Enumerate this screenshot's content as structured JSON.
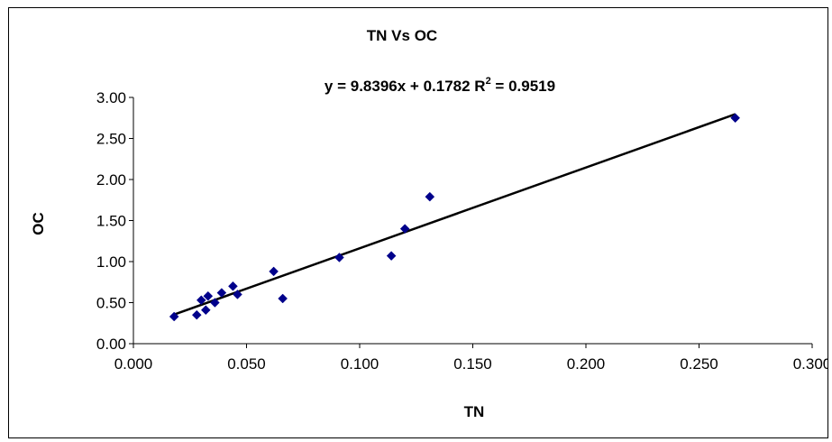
{
  "chart_data": {
    "type": "scatter",
    "title": "TN Vs OC",
    "xlabel": "TN",
    "ylabel": "OC",
    "xlim": [
      0.0,
      0.3
    ],
    "ylim": [
      0.0,
      3.0
    ],
    "x_ticks": [
      "0.000",
      "0.050",
      "0.100",
      "0.150",
      "0.200",
      "0.250",
      "0.300"
    ],
    "y_ticks": [
      "0.00",
      "0.50",
      "1.00",
      "1.50",
      "2.00",
      "2.50",
      "3.00"
    ],
    "grid": false,
    "legend": "none",
    "marker_color": "#00008B",
    "trendline": {
      "type": "linear",
      "slope": 9.8396,
      "intercept": 0.1782,
      "r_squared": 0.9519,
      "equation_prefix": "y = 9.8396x + 0.1782  R",
      "equation_sup": "2",
      "equation_suffix": " = 0.9519",
      "color": "#000000"
    },
    "series": [
      {
        "points": [
          [
            0.018,
            0.33
          ],
          [
            0.028,
            0.35
          ],
          [
            0.03,
            0.53
          ],
          [
            0.032,
            0.41
          ],
          [
            0.033,
            0.58
          ],
          [
            0.036,
            0.5
          ],
          [
            0.039,
            0.62
          ],
          [
            0.044,
            0.7
          ],
          [
            0.046,
            0.6
          ],
          [
            0.062,
            0.88
          ],
          [
            0.066,
            0.55
          ],
          [
            0.091,
            1.05
          ],
          [
            0.114,
            1.07
          ],
          [
            0.12,
            1.4
          ],
          [
            0.131,
            1.79
          ],
          [
            0.266,
            2.75
          ]
        ]
      }
    ]
  }
}
